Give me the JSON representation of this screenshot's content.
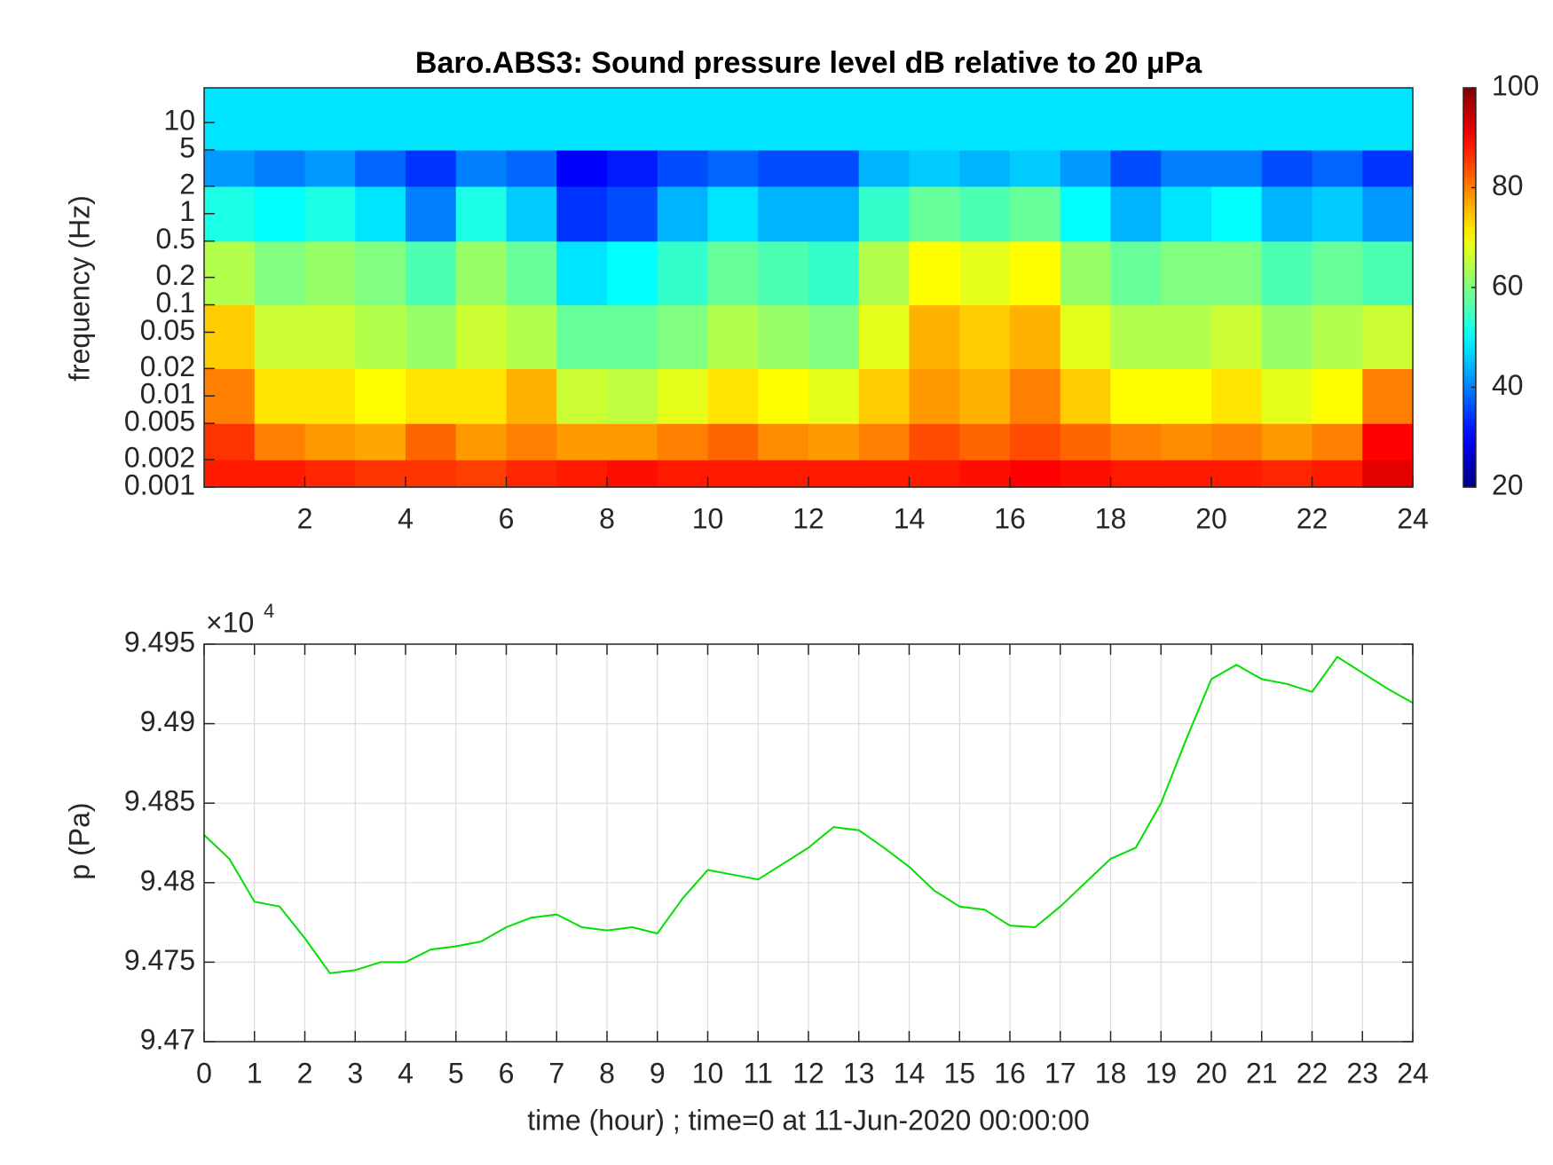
{
  "chart_data": [
    {
      "type": "heatmap",
      "title": "Baro.ABS3: Sound pressure level dB relative to 20 μPa",
      "ylabel": "frequency (Hz)",
      "x_bins": [
        0,
        1,
        2,
        3,
        4,
        5,
        6,
        7,
        8,
        9,
        10,
        11,
        12,
        13,
        14,
        15,
        16,
        17,
        18,
        19,
        20,
        21,
        22,
        23,
        24
      ],
      "y_bins": [
        0.001,
        0.002,
        0.005,
        0.02,
        0.1,
        0.5,
        2,
        5,
        24
      ],
      "z": [
        [
          88,
          88,
          87,
          86,
          86,
          85,
          87,
          88,
          89,
          88,
          88,
          88,
          88,
          88,
          88,
          89,
          90,
          89,
          88,
          88,
          88,
          87,
          88,
          92
        ],
        [
          86,
          80,
          78,
          77,
          82,
          78,
          80,
          78,
          78,
          80,
          82,
          79,
          78,
          80,
          84,
          82,
          84,
          82,
          80,
          79,
          80,
          78,
          80,
          90
        ],
        [
          80,
          72,
          72,
          70,
          72,
          72,
          76,
          66,
          65,
          68,
          72,
          70,
          68,
          74,
          78,
          76,
          80,
          74,
          70,
          70,
          72,
          68,
          70,
          80
        ],
        [
          74,
          66,
          66,
          64,
          62,
          66,
          64,
          58,
          58,
          60,
          64,
          62,
          60,
          68,
          76,
          74,
          76,
          68,
          64,
          64,
          66,
          62,
          64,
          66
        ],
        [
          64,
          60,
          62,
          60,
          56,
          62,
          58,
          48,
          50,
          54,
          58,
          56,
          54,
          64,
          70,
          68,
          70,
          62,
          58,
          60,
          60,
          56,
          58,
          56
        ],
        [
          52,
          50,
          52,
          48,
          40,
          52,
          46,
          34,
          36,
          44,
          48,
          44,
          44,
          54,
          58,
          56,
          58,
          50,
          44,
          48,
          50,
          44,
          46,
          42
        ],
        [
          42,
          40,
          42,
          38,
          34,
          40,
          38,
          30,
          32,
          36,
          38,
          36,
          36,
          44,
          46,
          44,
          46,
          42,
          36,
          40,
          40,
          36,
          38,
          34
        ],
        [
          48,
          48,
          48,
          48,
          48,
          48,
          48,
          48,
          48,
          48,
          48,
          48,
          48,
          48,
          48,
          48,
          48,
          48,
          48,
          48,
          48,
          48,
          48,
          48
        ]
      ],
      "xlim": [
        0,
        24
      ],
      "xticks": [
        2,
        4,
        6,
        8,
        10,
        12,
        14,
        16,
        18,
        20,
        22,
        24
      ],
      "ylim": [
        0.001,
        24
      ],
      "yscale": "log",
      "yticks": [
        0.001,
        0.002,
        0.005,
        0.01,
        0.02,
        0.05,
        0.1,
        0.2,
        0.5,
        1,
        2,
        5,
        10
      ],
      "colormap": "jet",
      "clim": [
        20,
        100
      ],
      "cticks": [
        20,
        40,
        60,
        80,
        100
      ],
      "grid": false
    },
    {
      "type": "line",
      "xlabel": "time (hour) ; time=0 at 11-Jun-2020 00:00:00",
      "ylabel": "p (Pa)",
      "multiplier_base": "×10",
      "multiplier_exponent": "4",
      "x": [
        0,
        0.5,
        1,
        1.5,
        2,
        2.5,
        3,
        3.5,
        4,
        4.5,
        5,
        5.5,
        6,
        6.5,
        7,
        7.5,
        8,
        8.5,
        9,
        9.5,
        10,
        10.5,
        11,
        11.5,
        12,
        12.5,
        13,
        13.5,
        14,
        14.5,
        15,
        15.5,
        16,
        16.5,
        17,
        17.5,
        18,
        18.5,
        19,
        19.5,
        20,
        20.5,
        21,
        21.5,
        22,
        22.5,
        23,
        23.5,
        24
      ],
      "series": [
        {
          "color": "#00e000",
          "values": [
            9.483,
            9.4815,
            9.4788,
            9.4785,
            9.4765,
            9.4743,
            9.4745,
            9.475,
            9.475,
            9.4758,
            9.476,
            9.4763,
            9.4772,
            9.4778,
            9.478,
            9.4772,
            9.477,
            9.4772,
            9.4768,
            9.479,
            9.4808,
            9.4805,
            9.4802,
            9.4812,
            9.4822,
            9.4835,
            9.4833,
            9.4822,
            9.481,
            9.4795,
            9.4785,
            9.4783,
            9.4773,
            9.4772,
            9.4785,
            9.48,
            9.4815,
            9.4822,
            9.485,
            9.489,
            9.4928,
            9.4937,
            9.4928,
            9.4925,
            9.492,
            9.4942,
            9.4932,
            9.4922,
            9.4913
          ]
        }
      ],
      "xlim": [
        0,
        24
      ],
      "xticks": [
        0,
        1,
        2,
        3,
        4,
        5,
        6,
        7,
        8,
        9,
        10,
        11,
        12,
        13,
        14,
        15,
        16,
        17,
        18,
        19,
        20,
        21,
        22,
        23,
        24
      ],
      "ylim": [
        9.47,
        9.495
      ],
      "yticks": [
        9.47,
        9.475,
        9.48,
        9.485,
        9.49,
        9.495
      ],
      "grid": true
    }
  ]
}
